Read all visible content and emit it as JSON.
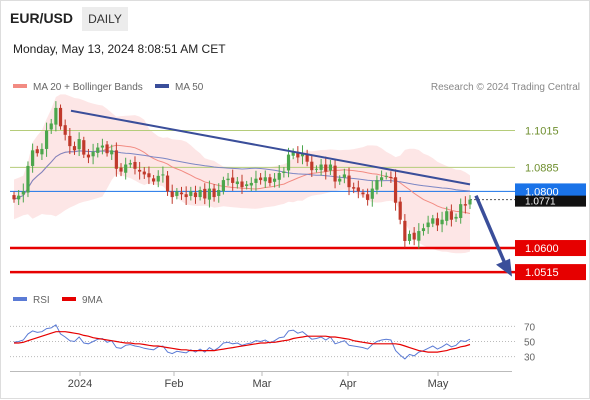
{
  "header": {
    "symbol": "EUR/USD",
    "timeframe": "DAILY",
    "timestamp": "Monday, May 13, 2024 8:08:51 AM CET"
  },
  "legend": {
    "bollinger_label": "MA 20 + Bollinger Bands",
    "ma50_label": "MA 50",
    "credit": "Research © 2024 Trading Central",
    "rsi_label": "RSI",
    "rsi_ma_label": "9MA"
  },
  "colors": {
    "candle_up": "#4ca64c",
    "candle_down": "#c0392b",
    "bollinger_fill": "#fde3e3",
    "ma20": "#f28b82",
    "ma50": "#7b86c4",
    "trendline": "#3a4e9a",
    "resistance": "#b5cc7a",
    "support": "#e60000",
    "current_price": "#1a73e8",
    "rsi": "#5b7bd5",
    "rsi_ma": "#e60000"
  },
  "chart_data": [
    {
      "type": "candlestick",
      "panel": "price",
      "x_tick_labels": [
        "2024",
        "Feb",
        "Mar",
        "Apr",
        "May"
      ],
      "y_range": [
        1.048,
        1.113
      ],
      "levels": [
        {
          "value": 1.1015,
          "label": "1.1015",
          "kind": "resistance"
        },
        {
          "value": 1.0885,
          "label": "1.0885",
          "kind": "resistance"
        },
        {
          "value": 1.08,
          "label": "1.0800",
          "kind": "current"
        },
        {
          "value": 1.0771,
          "label": "1.0771",
          "kind": "last"
        },
        {
          "value": 1.06,
          "label": "1.0600",
          "kind": "support"
        },
        {
          "value": 1.0515,
          "label": "1.0515",
          "kind": "support"
        }
      ],
      "trendline": {
        "from": 1.1085,
        "to": 1.0825
      },
      "forecast_arrow": {
        "from": 1.0785,
        "to": 1.052
      },
      "series": [
        {
          "name": "close",
          "values": [
            1.0772,
            1.0785,
            1.08,
            1.089,
            1.0945,
            1.0935,
            1.095,
            1.1015,
            1.104,
            1.1095,
            1.103,
            1.1,
            1.096,
            1.0945,
            1.0985,
            1.093,
            1.092,
            1.094,
            1.0955,
            1.0962,
            1.0935,
            1.0945,
            1.088,
            1.087,
            1.0895,
            1.09,
            1.088,
            1.087,
            1.086,
            1.085,
            1.0835,
            1.0855,
            1.086,
            1.08,
            1.078,
            1.08,
            1.079,
            1.078,
            1.08,
            1.078,
            1.0805,
            1.0775,
            1.081,
            1.078,
            1.0805,
            1.084,
            1.0845,
            1.083,
            1.0835,
            1.0815,
            1.0825,
            1.083,
            1.0845,
            1.084,
            1.085,
            1.083,
            1.0845,
            1.0865,
            1.087,
            1.093,
            1.094,
            1.092,
            1.0935,
            1.0905,
            1.0875,
            1.088,
            1.0895,
            1.087,
            1.0895,
            1.0835,
            1.0845,
            1.086,
            1.0815,
            1.081,
            1.08,
            1.079,
            1.077,
            1.081,
            1.084,
            1.085,
            1.0855,
            1.085,
            1.076,
            1.07,
            1.0625,
            1.065,
            1.063,
            1.066,
            1.067,
            1.069,
            1.0705,
            1.068,
            1.07,
            1.073,
            1.07,
            1.071,
            1.0755,
            1.075,
            1.0771
          ]
        }
      ]
    },
    {
      "type": "line",
      "panel": "rsi",
      "y_tick_labels": [
        "70",
        "50",
        "30"
      ],
      "y_range": [
        15,
        85
      ],
      "series": [
        {
          "name": "RSI",
          "values": [
            49,
            50,
            52,
            60,
            64,
            62,
            63,
            67,
            68,
            72,
            60,
            56,
            51,
            50,
            56,
            48,
            47,
            50,
            53,
            54,
            49,
            51,
            42,
            41,
            45,
            46,
            44,
            43,
            41,
            40,
            39,
            43,
            44,
            36,
            34,
            37,
            36,
            35,
            39,
            36,
            40,
            36,
            42,
            38,
            42,
            48,
            49,
            47,
            48,
            45,
            47,
            48,
            51,
            50,
            52,
            48,
            51,
            55,
            56,
            64,
            65,
            61,
            63,
            58,
            53,
            54,
            56,
            52,
            56,
            47,
            49,
            51,
            45,
            44,
            43,
            42,
            40,
            46,
            50,
            52,
            53,
            52,
            38,
            32,
            27,
            33,
            31,
            36,
            38,
            41,
            44,
            40,
            43,
            47,
            43,
            45,
            51,
            50,
            53
          ]
        },
        {
          "name": "9MA",
          "values": [
            48,
            48,
            49,
            51,
            53,
            55,
            57,
            59,
            61,
            63,
            63,
            63,
            62,
            61,
            60,
            58,
            57,
            55,
            54,
            53,
            52,
            51,
            50,
            49,
            48,
            48,
            47,
            47,
            46,
            45,
            44,
            44,
            43,
            42,
            41,
            40,
            39,
            39,
            38,
            38,
            38,
            38,
            38,
            38,
            39,
            40,
            41,
            42,
            43,
            44,
            45,
            46,
            47,
            48,
            48,
            49,
            49,
            50,
            51,
            52,
            54,
            55,
            56,
            57,
            57,
            57,
            57,
            57,
            56,
            56,
            55,
            54,
            53,
            51,
            50,
            49,
            48,
            47,
            47,
            47,
            47,
            47,
            47,
            46,
            44,
            42,
            40,
            38,
            37,
            36,
            36,
            36,
            37,
            38,
            40,
            41,
            43,
            44,
            46
          ]
        }
      ]
    }
  ]
}
